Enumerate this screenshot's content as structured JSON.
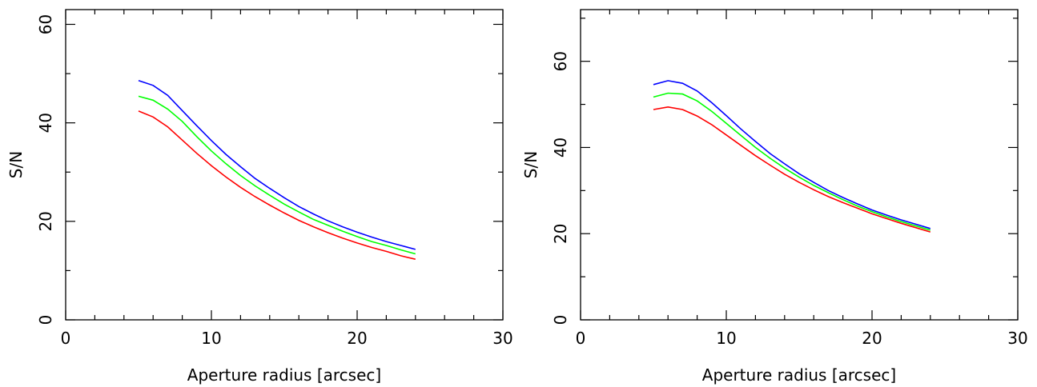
{
  "chart_data": [
    {
      "type": "line",
      "xlabel": "Aperture radius [arcsec]",
      "ylabel": "S/N",
      "xlim": [
        0,
        30
      ],
      "ylim": [
        0,
        63
      ],
      "xticks": [
        0,
        10,
        20,
        30
      ],
      "xtick_labels": [
        "0",
        "10",
        "20",
        "30"
      ],
      "yticks": [
        0,
        20,
        40,
        60
      ],
      "ytick_labels": [
        "0",
        "20",
        "40",
        "60"
      ],
      "x": [
        5,
        6,
        7,
        8,
        9,
        10,
        11,
        12,
        13,
        14,
        15,
        16,
        17,
        18,
        19,
        20,
        21,
        22,
        23,
        24
      ],
      "series": [
        {
          "color": "#0000ff",
          "values": [
            48.6,
            47.6,
            45.6,
            42.5,
            39.4,
            36.4,
            33.6,
            31.1,
            28.7,
            26.7,
            24.8,
            23.0,
            21.5,
            20.1,
            18.9,
            17.8,
            16.8,
            15.9,
            15.1,
            14.3
          ]
        },
        {
          "color": "#00ff00",
          "values": [
            45.4,
            44.6,
            42.8,
            40.3,
            37.2,
            34.3,
            31.7,
            29.3,
            27.2,
            25.3,
            23.5,
            21.9,
            20.4,
            19.2,
            18.0,
            16.9,
            15.9,
            15.1,
            14.2,
            13.4
          ]
        },
        {
          "color": "#ff0000",
          "values": [
            42.4,
            41.2,
            39.2,
            36.5,
            33.8,
            31.3,
            29.0,
            26.9,
            25.0,
            23.3,
            21.7,
            20.2,
            18.9,
            17.7,
            16.6,
            15.6,
            14.7,
            13.9,
            13.0,
            12.3
          ]
        }
      ]
    },
    {
      "type": "line",
      "xlabel": "Aperture radius [arcsec]",
      "ylabel": "S/N",
      "xlim": [
        0,
        30
      ],
      "ylim": [
        0,
        72
      ],
      "xticks": [
        0,
        10,
        20,
        30
      ],
      "xtick_labels": [
        "0",
        "10",
        "20",
        "30"
      ],
      "yticks": [
        0,
        20,
        40,
        60
      ],
      "ytick_labels": [
        "0",
        "20",
        "40",
        "60"
      ],
      "x": [
        5,
        6,
        7,
        8,
        9,
        10,
        11,
        12,
        13,
        14,
        15,
        16,
        17,
        18,
        19,
        20,
        21,
        22,
        23,
        24
      ],
      "series": [
        {
          "color": "#0000ff",
          "values": [
            54.6,
            55.5,
            54.9,
            53.1,
            50.4,
            47.4,
            44.3,
            41.4,
            38.6,
            36.2,
            33.9,
            31.9,
            30.0,
            28.4,
            26.9,
            25.5,
            24.3,
            23.2,
            22.2,
            21.2
          ]
        },
        {
          "color": "#00ff00",
          "values": [
            51.7,
            52.6,
            52.4,
            50.8,
            48.4,
            45.6,
            42.8,
            40.0,
            37.5,
            35.2,
            33.1,
            31.2,
            29.5,
            27.9,
            26.4,
            25.1,
            23.9,
            22.8,
            21.8,
            20.8
          ]
        },
        {
          "color": "#ff0000",
          "values": [
            48.8,
            49.4,
            48.8,
            47.3,
            45.3,
            42.9,
            40.5,
            38.1,
            35.9,
            33.8,
            31.9,
            30.2,
            28.6,
            27.2,
            25.9,
            24.6,
            23.5,
            22.4,
            21.4,
            20.4
          ]
        }
      ]
    }
  ]
}
